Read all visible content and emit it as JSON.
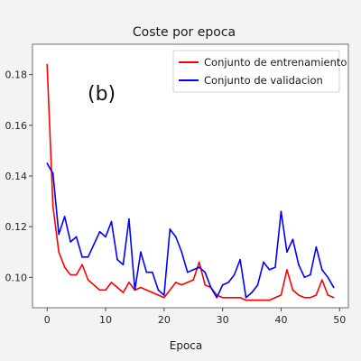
{
  "chart_data": {
    "type": "line",
    "title": "Coste por epoca",
    "panel_label": "(b)",
    "xlabel": "Epoca",
    "ylabel": "",
    "xlim": [
      -2.5,
      51.5
    ],
    "ylim": [
      0.088,
      0.192
    ],
    "xticks": [
      0,
      10,
      20,
      30,
      40,
      50
    ],
    "yticks": [
      0.1,
      0.12,
      0.14,
      0.16,
      0.18
    ],
    "ytick_labels": [
      "0.10",
      "0.12",
      "0.14",
      "0.16",
      "0.18"
    ],
    "grid": false,
    "legend_position": "top-right",
    "series": [
      {
        "name": "Conjunto de entrenamiento",
        "color": "#ff0000",
        "x": [
          0,
          1,
          2,
          3,
          4,
          5,
          6,
          7,
          8,
          9,
          10,
          11,
          12,
          13,
          14,
          15,
          16,
          17,
          18,
          19,
          20,
          21,
          22,
          23,
          24,
          25,
          26,
          27,
          28,
          29,
          30,
          31,
          32,
          33,
          34,
          35,
          36,
          37,
          38,
          39,
          40,
          41,
          42,
          43,
          44,
          45,
          46,
          47,
          48,
          49
        ],
        "values": [
          0.184,
          0.128,
          0.11,
          0.104,
          0.101,
          0.101,
          0.105,
          0.099,
          0.097,
          0.095,
          0.095,
          0.098,
          0.096,
          0.094,
          0.098,
          0.095,
          0.096,
          0.095,
          0.094,
          0.093,
          0.092,
          0.095,
          0.098,
          0.097,
          0.098,
          0.099,
          0.106,
          0.097,
          0.096,
          0.093,
          0.092,
          0.092,
          0.092,
          0.092,
          0.091,
          0.091,
          0.091,
          0.091,
          0.091,
          0.092,
          0.093,
          0.103,
          0.095,
          0.093,
          0.092,
          0.092,
          0.093,
          0.099,
          0.093,
          0.092
        ]
      },
      {
        "name": "Conjunto de validacion",
        "color": "#0000ff",
        "x": [
          0,
          1,
          2,
          3,
          4,
          5,
          6,
          7,
          8,
          9,
          10,
          11,
          12,
          13,
          14,
          15,
          16,
          17,
          18,
          19,
          20,
          21,
          22,
          23,
          24,
          25,
          26,
          27,
          28,
          29,
          30,
          31,
          32,
          33,
          34,
          35,
          36,
          37,
          38,
          39,
          40,
          41,
          42,
          43,
          44,
          45,
          46,
          47,
          48,
          49
        ],
        "values": [
          0.145,
          0.141,
          0.117,
          0.124,
          0.114,
          0.116,
          0.108,
          0.108,
          0.113,
          0.118,
          0.116,
          0.122,
          0.107,
          0.105,
          0.123,
          0.095,
          0.11,
          0.102,
          0.102,
          0.095,
          0.093,
          0.119,
          0.116,
          0.11,
          0.102,
          0.103,
          0.104,
          0.102,
          0.096,
          0.092,
          0.097,
          0.098,
          0.101,
          0.107,
          0.092,
          0.094,
          0.097,
          0.106,
          0.103,
          0.104,
          0.126,
          0.11,
          0.115,
          0.105,
          0.1,
          0.101,
          0.112,
          0.103,
          0.1,
          0.096
        ]
      }
    ]
  }
}
